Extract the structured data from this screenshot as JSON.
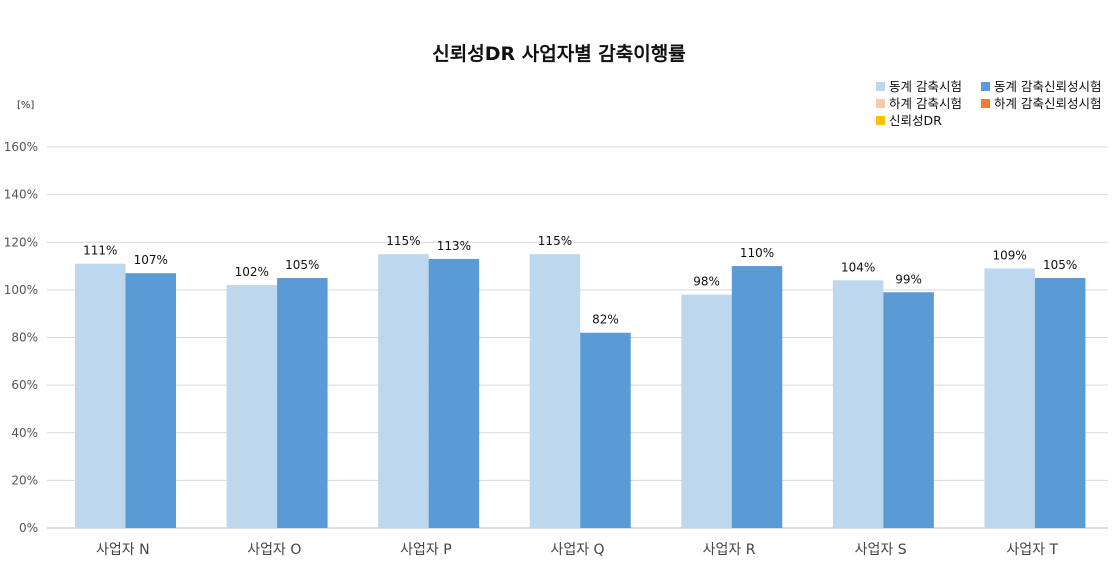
{
  "chart_data": {
    "type": "bar",
    "title": "신뢰성DR 사업자별 감축이행률",
    "ylabel": "[%]",
    "xlabel": "",
    "ylim": [
      0,
      160
    ],
    "yticks": [
      0,
      20,
      40,
      60,
      80,
      100,
      120,
      140,
      160
    ],
    "ytick_labels": [
      "0%",
      "20%",
      "40%",
      "60%",
      "80%",
      "100%",
      "120%",
      "140%",
      "160%"
    ],
    "grid": true,
    "legend_position": "top-right",
    "categories": [
      "사업자 N",
      "사업자 O",
      "사업자 P",
      "사업자 Q",
      "사업자 R",
      "사업자 S",
      "사업자 T"
    ],
    "legend": [
      {
        "name": "동계 감축시험",
        "color": "#BDD7EE"
      },
      {
        "name": "동계 감축신뢰성시험",
        "color": "#5B9BD5"
      },
      {
        "name": "하계 감축시험",
        "color": "#F8CBAD"
      },
      {
        "name": "하계 감축신뢰성시험",
        "color": "#ED7D31"
      },
      {
        "name": "신뢰성DR",
        "color": "#FFC000"
      }
    ],
    "series": [
      {
        "name": "동계 감축시험",
        "color": "#BDD7EE",
        "values": [
          111,
          102,
          115,
          115,
          98,
          104,
          109
        ],
        "labels": [
          "111%",
          "102%",
          "115%",
          "115%",
          "98%",
          "104%",
          "109%"
        ]
      },
      {
        "name": "동계 감축신뢰성시험",
        "color": "#5B9BD5",
        "values": [
          107,
          105,
          113,
          82,
          110,
          99,
          105
        ],
        "labels": [
          "107%",
          "105%",
          "113%",
          "82%",
          "110%",
          "99%",
          "105%"
        ]
      }
    ]
  }
}
